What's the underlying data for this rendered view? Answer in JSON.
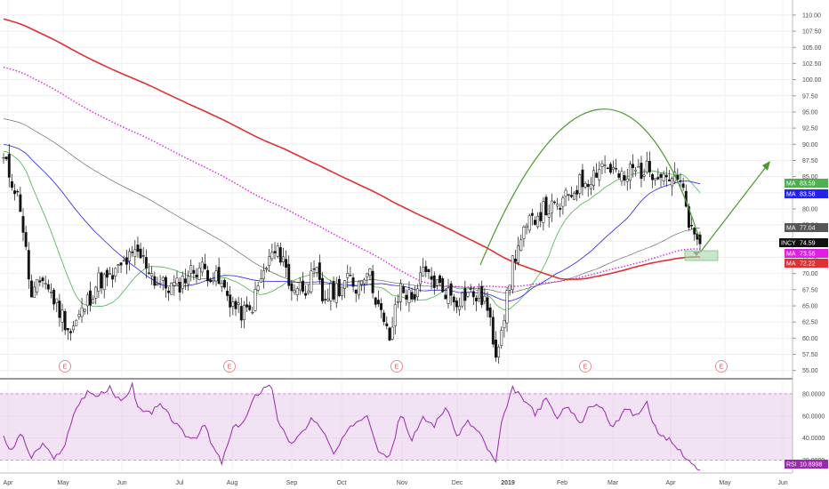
{
  "chart_data": [
    {
      "type": "candlestick",
      "symbol": "INCY",
      "y_range": [
        54.0,
        111.5
      ],
      "y_ticks": [
        "110.00",
        "107.50",
        "105.00",
        "102.50",
        "100.00",
        "97.50",
        "95.00",
        "92.50",
        "90.00",
        "87.50",
        "85.00",
        "82.50",
        "80.00",
        "77.50",
        "75.00",
        "72.50",
        "70.00",
        "67.50",
        "65.00",
        "62.50",
        "60.00",
        "57.50",
        "55.00"
      ],
      "x_ticks": [
        "Apr",
        "May",
        "Jun",
        "Jul",
        "Aug",
        "Sep",
        "Oct",
        "Nov",
        "Dec",
        "2019",
        "Feb",
        "Mar",
        "Apr",
        "May",
        "Jun"
      ],
      "close_anchors": [
        [
          0,
          87.5
        ],
        [
          3,
          84.5
        ],
        [
          6,
          80.5
        ],
        [
          10,
          66
        ],
        [
          14,
          69.5
        ],
        [
          18,
          66
        ],
        [
          24,
          61
        ],
        [
          28,
          64
        ],
        [
          34,
          69
        ],
        [
          38,
          69
        ],
        [
          44,
          72
        ],
        [
          48,
          73
        ],
        [
          52,
          71
        ],
        [
          54,
          69
        ],
        [
          58,
          68
        ],
        [
          62,
          68
        ],
        [
          66,
          70
        ],
        [
          70,
          71
        ],
        [
          74,
          70
        ],
        [
          78,
          68
        ],
        [
          84,
          64
        ],
        [
          88,
          64
        ],
        [
          92,
          69
        ],
        [
          96,
          73
        ],
        [
          100,
          73
        ],
        [
          102,
          68
        ],
        [
          108,
          68
        ],
        [
          112,
          70
        ],
        [
          114,
          66
        ],
        [
          120,
          68
        ],
        [
          124,
          69
        ],
        [
          126,
          68
        ],
        [
          130,
          71
        ],
        [
          136,
          62
        ],
        [
          138,
          60
        ],
        [
          142,
          68
        ],
        [
          146,
          66
        ],
        [
          150,
          70
        ],
        [
          156,
          68
        ],
        [
          162,
          66
        ],
        [
          166,
          67
        ],
        [
          172,
          66
        ],
        [
          174,
          62
        ],
        [
          176,
          58
        ],
        [
          178,
          62
        ],
        [
          180,
          66
        ],
        [
          182,
          72
        ],
        [
          186,
          76
        ],
        [
          190,
          79
        ],
        [
          194,
          80
        ],
        [
          198,
          80
        ],
        [
          202,
          82
        ],
        [
          206,
          84
        ],
        [
          210,
          85
        ],
        [
          214,
          87
        ],
        [
          218,
          86
        ],
        [
          222,
          84
        ],
        [
          224,
          86
        ],
        [
          230,
          86
        ],
        [
          234,
          86
        ],
        [
          238,
          85
        ],
        [
          242,
          84
        ],
        [
          246,
          76
        ],
        [
          248,
          74.59
        ]
      ],
      "moving_averages": [
        {
          "name": "MA",
          "value": "83.59",
          "color": "#4caf50",
          "period": 20
        },
        {
          "name": "MA",
          "value": "83.58",
          "color": "#2222ee",
          "period": 50
        },
        {
          "name": "MA",
          "value": "77.04",
          "color": "#555555",
          "period": 100
        },
        {
          "name": "MA",
          "value": "73.56",
          "color": "#e020e0",
          "period": 150
        },
        {
          "name": "MA",
          "value": "72.22",
          "color": "#e03030",
          "period": 200
        }
      ],
      "last_price": {
        "name": "INCY",
        "value": "74.59"
      },
      "earnings_markers": [
        "E",
        "E",
        "E",
        "E",
        "E"
      ]
    },
    {
      "type": "line",
      "name": "RSI",
      "value": "10.8998",
      "y_range": [
        10,
        92
      ],
      "y_ticks": [
        "80.0000",
        "60.0000",
        "40.0000",
        "20.0000"
      ],
      "band": [
        20,
        80
      ],
      "anchors": [
        [
          0,
          40
        ],
        [
          3,
          28
        ],
        [
          6,
          45
        ],
        [
          10,
          22
        ],
        [
          14,
          35
        ],
        [
          18,
          20
        ],
        [
          22,
          35
        ],
        [
          26,
          68
        ],
        [
          30,
          82
        ],
        [
          34,
          78
        ],
        [
          38,
          85
        ],
        [
          42,
          72
        ],
        [
          46,
          88
        ],
        [
          48,
          68
        ],
        [
          52,
          62
        ],
        [
          56,
          70
        ],
        [
          60,
          58
        ],
        [
          64,
          45
        ],
        [
          68,
          38
        ],
        [
          72,
          52
        ],
        [
          74,
          36
        ],
        [
          78,
          18
        ],
        [
          82,
          48
        ],
        [
          86,
          55
        ],
        [
          90,
          78
        ],
        [
          94,
          88
        ],
        [
          96,
          86
        ],
        [
          98,
          58
        ],
        [
          102,
          35
        ],
        [
          106,
          42
        ],
        [
          110,
          58
        ],
        [
          114,
          48
        ],
        [
          118,
          25
        ],
        [
          122,
          42
        ],
        [
          126,
          55
        ],
        [
          130,
          62
        ],
        [
          134,
          30
        ],
        [
          138,
          22
        ],
        [
          142,
          62
        ],
        [
          146,
          38
        ],
        [
          150,
          58
        ],
        [
          154,
          52
        ],
        [
          158,
          68
        ],
        [
          162,
          42
        ],
        [
          166,
          55
        ],
        [
          170,
          45
        ],
        [
          174,
          26
        ],
        [
          176,
          18
        ],
        [
          178,
          52
        ],
        [
          182,
          85
        ],
        [
          186,
          75
        ],
        [
          190,
          62
        ],
        [
          194,
          75
        ],
        [
          198,
          58
        ],
        [
          202,
          70
        ],
        [
          206,
          52
        ],
        [
          210,
          70
        ],
        [
          214,
          68
        ],
        [
          218,
          48
        ],
        [
          222,
          68
        ],
        [
          226,
          60
        ],
        [
          230,
          72
        ],
        [
          234,
          42
        ],
        [
          238,
          38
        ],
        [
          242,
          28
        ],
        [
          246,
          18
        ],
        [
          248,
          10.9
        ]
      ]
    }
  ],
  "annotations": {
    "arc_color": "#4a9a2e",
    "box_color": "#a5d6a7"
  }
}
